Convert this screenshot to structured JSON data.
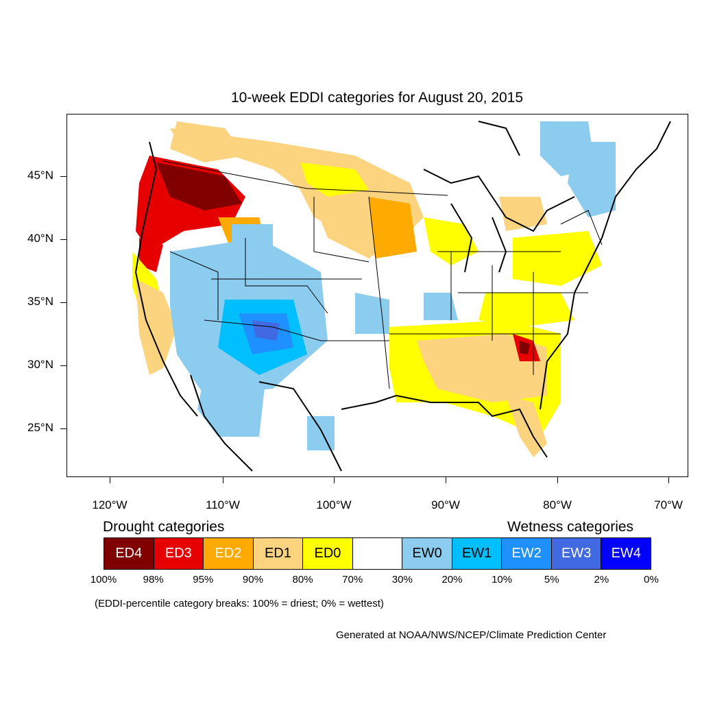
{
  "title": "10-week EDDI categories for August 20, 2015",
  "lat_labels": [
    "45°N",
    "40°N",
    "35°N",
    "30°N",
    "25°N"
  ],
  "lon_labels": [
    "120°W",
    "110°W",
    "100°W",
    "90°W",
    "80°W",
    "70°W"
  ],
  "legend": {
    "drought_heading": "Drought categories",
    "wetness_heading": "Wetness categories",
    "categories": [
      {
        "label": "ED4",
        "color": "#800000",
        "text_color": "#ffffff"
      },
      {
        "label": "ED3",
        "color": "#e60000",
        "text_color": "#ffffff"
      },
      {
        "label": "ED2",
        "color": "#ffaa00",
        "text_color": "#ffffff"
      },
      {
        "label": "ED1",
        "color": "#fcd37f",
        "text_color": "#000000"
      },
      {
        "label": "ED0",
        "color": "#ffff00",
        "text_color": "#000000"
      },
      {
        "label": "",
        "color": "#ffffff",
        "text_color": "#000000"
      },
      {
        "label": "EW0",
        "color": "#8ccdef",
        "text_color": "#000000"
      },
      {
        "label": "EW1",
        "color": "#00bfff",
        "text_color": "#000000"
      },
      {
        "label": "EW2",
        "color": "#1e90ff",
        "text_color": "#ffffff"
      },
      {
        "label": "EW3",
        "color": "#4169e1",
        "text_color": "#ffffff"
      },
      {
        "label": "EW4",
        "color": "#0000ff",
        "text_color": "#ffffff"
      }
    ],
    "breaks": [
      "100%",
      "98%",
      "95%",
      "90%",
      "80%",
      "70%",
      "30%",
      "20%",
      "10%",
      "5%",
      "2%",
      "0%"
    ]
  },
  "note": "(EDDI-percentile category breaks: 100% = driest; 0% = wettest)",
  "credit": "Generated at NOAA/NWS/NCEP/Climate Prediction Center"
}
